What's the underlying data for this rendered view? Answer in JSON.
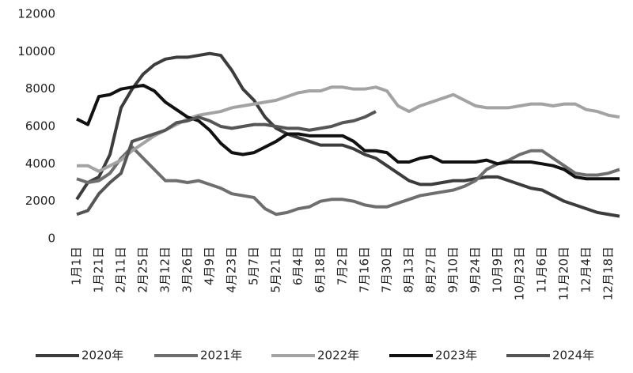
{
  "chart_data": {
    "type": "line",
    "categories": [
      "1月1日",
      null,
      "1月21日",
      null,
      "2月11日",
      null,
      "2月25日",
      null,
      "3月12日",
      null,
      "3月26日",
      null,
      "4月9日",
      null,
      "4月23日",
      null,
      "5月7日",
      null,
      "5月21日",
      null,
      "6月4日",
      null,
      "6月18日",
      null,
      "7月2日",
      null,
      "7月16日",
      null,
      "7月30日",
      null,
      "8月13日",
      null,
      "8月27日",
      null,
      "9月10日",
      null,
      "9月24日",
      null,
      "10月9日",
      null,
      "10月23日",
      null,
      "11月6日",
      null,
      "11月20日",
      null,
      "12月4日",
      null,
      "12月18日",
      null
    ],
    "series": [
      {
        "name": "2020年",
        "color": "#3c3c3c",
        "values": [
          2100,
          3000,
          3300,
          4500,
          7000,
          8000,
          8800,
          9300,
          9600,
          9700,
          9700,
          9800,
          9900,
          9800,
          9000,
          8000,
          7400,
          6500,
          5900,
          5600,
          5400,
          5200,
          5000,
          5000,
          5000,
          4800,
          4500,
          4300,
          3900,
          3500,
          3100,
          2900,
          2900,
          3000,
          3100,
          3100,
          3200,
          3300,
          3300,
          3100,
          2900,
          2700,
          2600,
          2300,
          2000,
          1800,
          1600,
          1400,
          1300,
          1200
        ]
      },
      {
        "name": "2021年",
        "color": "#6e6e6e",
        "values": [
          3200,
          3000,
          3100,
          3500,
          4300,
          4900,
          4300,
          3700,
          3100,
          3100,
          3000,
          3100,
          2900,
          2700,
          2400,
          2300,
          2200,
          1600,
          1300,
          1400,
          1600,
          1700,
          2000,
          2100,
          2100,
          2000,
          1800,
          1700,
          1700,
          1900,
          2100,
          2300,
          2400,
          2500,
          2600,
          2800,
          3100,
          3700,
          4000,
          4200,
          4500,
          4700,
          4700,
          4300,
          3900,
          3500,
          3400,
          3400,
          3500,
          3700
        ]
      },
      {
        "name": "2022年",
        "color": "#a3a3a3",
        "values": [
          3900,
          3900,
          3600,
          3900,
          4200,
          4700,
          5100,
          5500,
          5800,
          6100,
          6400,
          6600,
          6700,
          6800,
          7000,
          7100,
          7200,
          7300,
          7400,
          7600,
          7800,
          7900,
          7900,
          8100,
          8100,
          8000,
          8000,
          8100,
          7900,
          7100,
          6800,
          7100,
          7300,
          7500,
          7700,
          7400,
          7100,
          7000,
          7000,
          7000,
          7100,
          7200,
          7200,
          7100,
          7200,
          7200,
          6900,
          6800,
          6600,
          6500
        ]
      },
      {
        "name": "2023年",
        "color": "#111111",
        "values": [
          6400,
          6100,
          7600,
          7700,
          8000,
          8100,
          8200,
          7900,
          7300,
          6900,
          6500,
          6300,
          5800,
          5100,
          4600,
          4500,
          4600,
          4900,
          5200,
          5600,
          5600,
          5500,
          5500,
          5500,
          5500,
          5200,
          4700,
          4700,
          4600,
          4100,
          4100,
          4300,
          4400,
          4100,
          4100,
          4100,
          4100,
          4200,
          4000,
          4100,
          4100,
          4100,
          4000,
          3900,
          3700,
          3300,
          3200,
          3200,
          3200,
          3200
        ]
      },
      {
        "name": "2024年",
        "color": "#555555",
        "values": [
          1300,
          1500,
          2400,
          3000,
          3500,
          5200,
          5400,
          5600,
          5800,
          6200,
          6300,
          6500,
          6300,
          6000,
          5900,
          6000,
          6100,
          6100,
          6000,
          5900,
          5900,
          5800,
          5900,
          6000,
          6200,
          6300,
          6500,
          6800,
          null,
          null,
          null,
          null,
          null,
          null,
          null,
          null,
          null,
          null,
          null,
          null,
          null,
          null,
          null,
          null,
          null,
          null,
          null,
          null,
          null,
          null
        ]
      }
    ],
    "ylim": [
      0,
      12000
    ],
    "yticks": [
      0,
      2000,
      4000,
      6000,
      8000,
      10000,
      12000
    ],
    "legend": "bottom"
  }
}
